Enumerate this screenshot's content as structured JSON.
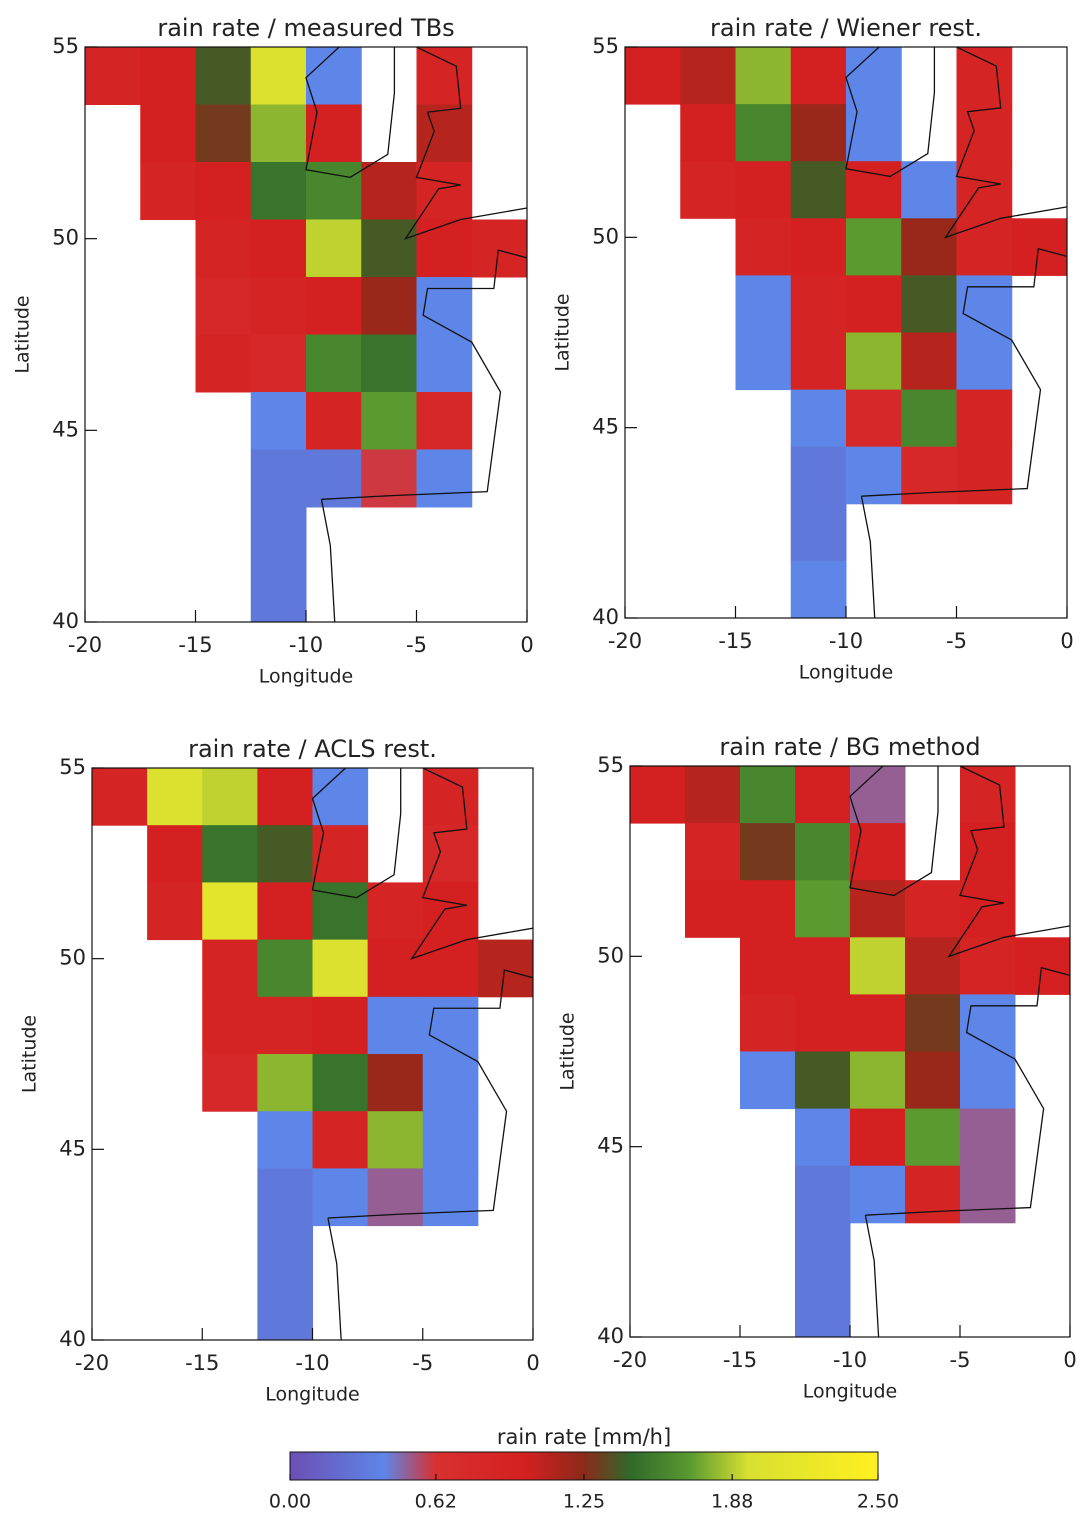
{
  "chart_data": [
    {
      "type": "heatmap",
      "title": "rain rate / measured TBs",
      "xlabel": "Longitude",
      "ylabel": "Latitude",
      "xlim": [
        -20,
        0
      ],
      "ylim": [
        40,
        55
      ],
      "xticks": [
        -20,
        -15,
        -10,
        -5,
        0
      ],
      "yticks": [
        40,
        45,
        50,
        55
      ],
      "x": [
        -18.75,
        -16.25,
        -13.75,
        -11.25,
        -8.75,
        -6.25,
        -3.75,
        -1.25
      ],
      "y": [
        54.25,
        52.75,
        51.25,
        49.75,
        48.25,
        46.75,
        45.25,
        43.75,
        42.25,
        40.75
      ],
      "values": [
        [
          0.9,
          1.0,
          1.4,
          2.0,
          0.4,
          null,
          0.9,
          null
        ],
        [
          null,
          1.0,
          1.3,
          1.8,
          1.0,
          null,
          1.1,
          null
        ],
        [
          null,
          0.9,
          1.0,
          1.5,
          1.6,
          1.1,
          0.9,
          null
        ],
        [
          null,
          null,
          0.9,
          1.0,
          1.9,
          1.4,
          1.0,
          0.9
        ],
        [
          null,
          null,
          0.8,
          0.9,
          1.0,
          1.2,
          0.4,
          null
        ],
        [
          null,
          null,
          0.9,
          0.8,
          1.6,
          1.5,
          0.4,
          null
        ],
        [
          null,
          null,
          null,
          0.4,
          0.9,
          1.7,
          0.8,
          null
        ],
        [
          null,
          null,
          null,
          0.3,
          0.3,
          0.6,
          0.4,
          null
        ],
        [
          null,
          null,
          null,
          0.3,
          null,
          null,
          null,
          null
        ],
        [
          null,
          null,
          null,
          0.3,
          null,
          null,
          null,
          null
        ]
      ]
    },
    {
      "type": "heatmap",
      "title": "rain rate / Wiener rest.",
      "xlabel": "Longitude",
      "ylabel": "Latitude",
      "xlim": [
        -20,
        0
      ],
      "ylim": [
        40,
        55
      ],
      "xticks": [
        -20,
        -15,
        -10,
        -5,
        0
      ],
      "yticks": [
        40,
        45,
        50,
        55
      ],
      "x": [
        -18.75,
        -16.25,
        -13.75,
        -11.25,
        -8.75,
        -6.25,
        -3.75,
        -1.25
      ],
      "y": [
        54.25,
        52.75,
        51.25,
        49.75,
        48.25,
        46.75,
        45.25,
        43.75,
        42.25,
        40.75
      ],
      "values": [
        [
          1.0,
          1.1,
          1.8,
          1.0,
          0.4,
          null,
          0.9,
          null
        ],
        [
          null,
          1.0,
          1.6,
          1.2,
          0.4,
          null,
          0.9,
          null
        ],
        [
          null,
          0.9,
          1.0,
          1.4,
          1.0,
          0.4,
          0.9,
          null
        ],
        [
          null,
          null,
          0.9,
          1.0,
          1.7,
          1.2,
          0.9,
          1.0
        ],
        [
          null,
          null,
          0.4,
          0.9,
          1.0,
          1.4,
          0.4,
          null
        ],
        [
          null,
          null,
          0.4,
          0.9,
          1.8,
          1.1,
          0.4,
          null
        ],
        [
          null,
          null,
          null,
          0.4,
          0.8,
          1.6,
          0.9,
          null
        ],
        [
          null,
          null,
          null,
          0.3,
          0.4,
          0.8,
          0.9,
          null
        ],
        [
          null,
          null,
          null,
          0.3,
          null,
          null,
          null,
          null
        ],
        [
          null,
          null,
          null,
          0.4,
          null,
          null,
          null,
          null
        ]
      ]
    },
    {
      "type": "heatmap",
      "title": "rain rate / ACLS rest.",
      "xlabel": "Longitude",
      "ylabel": "Latitude",
      "xlim": [
        -20,
        0
      ],
      "ylim": [
        40,
        55
      ],
      "xticks": [
        -20,
        -15,
        -10,
        -5,
        0
      ],
      "yticks": [
        40,
        45,
        50,
        55
      ],
      "x": [
        -18.75,
        -16.25,
        -13.75,
        -11.25,
        -8.75,
        -6.25,
        -3.75,
        -1.25
      ],
      "y": [
        54.25,
        52.75,
        51.25,
        49.75,
        48.25,
        46.75,
        45.25,
        43.75,
        42.25,
        40.75
      ],
      "values": [
        [
          0.9,
          2.0,
          1.9,
          1.0,
          0.4,
          null,
          0.9,
          null
        ],
        [
          null,
          1.0,
          1.5,
          1.4,
          0.9,
          null,
          0.8,
          null
        ],
        [
          null,
          0.9,
          2.1,
          1.0,
          1.5,
          0.9,
          1.0,
          null
        ],
        [
          null,
          null,
          0.9,
          1.6,
          2.0,
          1.0,
          1.0,
          1.1
        ],
        [
          null,
          null,
          0.9,
          0.9,
          1.0,
          0.4,
          0.4,
          null
        ],
        [
          null,
          null,
          0.8,
          1.8,
          1.5,
          1.2,
          0.4,
          null
        ],
        [
          null,
          null,
          null,
          0.4,
          0.9,
          1.8,
          0.4,
          null
        ],
        [
          null,
          null,
          null,
          0.3,
          0.4,
          0.5,
          0.4,
          null
        ],
        [
          null,
          null,
          null,
          0.3,
          null,
          null,
          null,
          null
        ],
        [
          null,
          null,
          null,
          0.3,
          null,
          null,
          null,
          null
        ]
      ]
    },
    {
      "type": "heatmap",
      "title": "rain rate / BG method",
      "xlabel": "Longitude",
      "ylabel": "Latitude",
      "xlim": [
        -20,
        0
      ],
      "ylim": [
        40,
        55
      ],
      "xticks": [
        -20,
        -15,
        -10,
        -5,
        0
      ],
      "yticks": [
        40,
        45,
        50,
        55
      ],
      "x": [
        -18.75,
        -16.25,
        -13.75,
        -11.25,
        -8.75,
        -6.25,
        -3.75,
        -1.25
      ],
      "y": [
        54.25,
        52.75,
        51.25,
        49.75,
        48.25,
        46.75,
        45.25,
        43.75,
        42.25,
        40.75
      ],
      "values": [
        [
          1.0,
          1.1,
          1.6,
          1.0,
          0.5,
          null,
          0.9,
          null
        ],
        [
          null,
          0.9,
          1.3,
          1.6,
          1.0,
          null,
          1.0,
          null
        ],
        [
          null,
          1.0,
          1.0,
          1.7,
          1.1,
          0.9,
          1.0,
          null
        ],
        [
          null,
          null,
          1.0,
          1.0,
          1.9,
          1.1,
          0.9,
          1.0
        ],
        [
          null,
          null,
          0.9,
          1.0,
          1.0,
          1.3,
          0.4,
          null
        ],
        [
          null,
          null,
          0.4,
          1.4,
          1.8,
          1.2,
          0.4,
          null
        ],
        [
          null,
          null,
          null,
          0.4,
          1.0,
          1.7,
          0.5,
          null
        ],
        [
          null,
          null,
          null,
          0.3,
          0.4,
          0.9,
          0.5,
          null
        ],
        [
          null,
          null,
          null,
          0.3,
          null,
          null,
          null,
          null
        ],
        [
          null,
          null,
          null,
          0.3,
          null,
          null,
          null,
          null
        ]
      ]
    },
    {
      "type": "colorbar",
      "title": "rain rate [mm/h]",
      "xlim": [
        0,
        2.5
      ],
      "xticks": [
        {
          "value": 0,
          "label": "0.00"
        },
        0.62,
        1.25,
        1.88,
        {
          "value": 2.5,
          "label": "2.50"
        }
      ],
      "colormap": [
        {
          "value": 0,
          "color": "#6c4fb4"
        },
        {
          "value": 0.4,
          "color": "#5d86e8"
        },
        {
          "value": 0.62,
          "color": "#d83030"
        },
        {
          "value": 1.0,
          "color": "#d42020"
        },
        {
          "value": 1.25,
          "color": "#8a2a1a"
        },
        {
          "value": 1.45,
          "color": "#2f6a2a"
        },
        {
          "value": 1.7,
          "color": "#5a9a30"
        },
        {
          "value": 1.95,
          "color": "#d8e030"
        },
        {
          "value": 2.5,
          "color": "#fff020"
        }
      ]
    }
  ]
}
